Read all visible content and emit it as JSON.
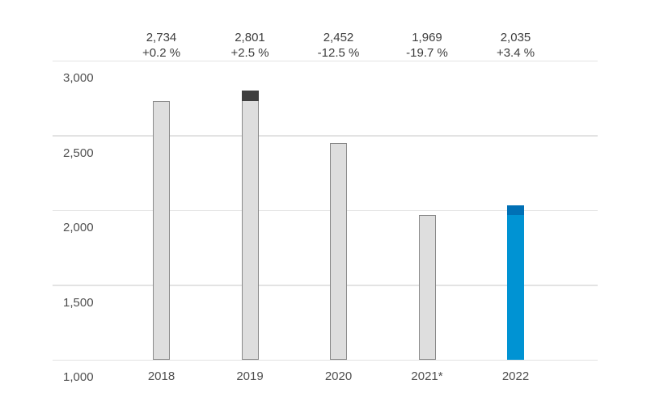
{
  "chart_data": {
    "type": "bar",
    "title": "",
    "xlabel": "",
    "ylabel": "",
    "categories": [
      "2018",
      "2019",
      "2020",
      "2021*",
      "2022"
    ],
    "values": [
      2734,
      2801,
      2452,
      1969,
      2035
    ],
    "value_labels": [
      "2,734",
      "2,801",
      "2,452",
      "1,969",
      "2,035"
    ],
    "change_labels": [
      "+0.2 %",
      "+2.5 %",
      "-12.5 %",
      "-19.7 %",
      "+3.4 %"
    ],
    "cap_base_values": [
      null,
      2734,
      null,
      null,
      1969
    ],
    "ylim": [
      1000,
      3000
    ],
    "yticks": [
      1000,
      1500,
      2000,
      2500,
      3000
    ],
    "ytick_labels": [
      "1,000",
      "1,500",
      "2,000",
      "2,500",
      "3,000"
    ],
    "grid": true,
    "legend": false,
    "colors": {
      "background": "#ffffff",
      "gridline": "#e3e3e3",
      "bar_fill": [
        "#dedede",
        "#dedede",
        "#dedede",
        "#dedede",
        "#0093d3"
      ],
      "bar_border": [
        "#8a8a8a",
        "#8a8a8a",
        "#8a8a8a",
        "#8a8a8a",
        "none"
      ],
      "cap_fill": [
        null,
        "#3f3f3f",
        null,
        null,
        "#0070b5"
      ],
      "value_label_text": "#3d3d3d",
      "axis_label_text": "#4f4f4f"
    }
  }
}
